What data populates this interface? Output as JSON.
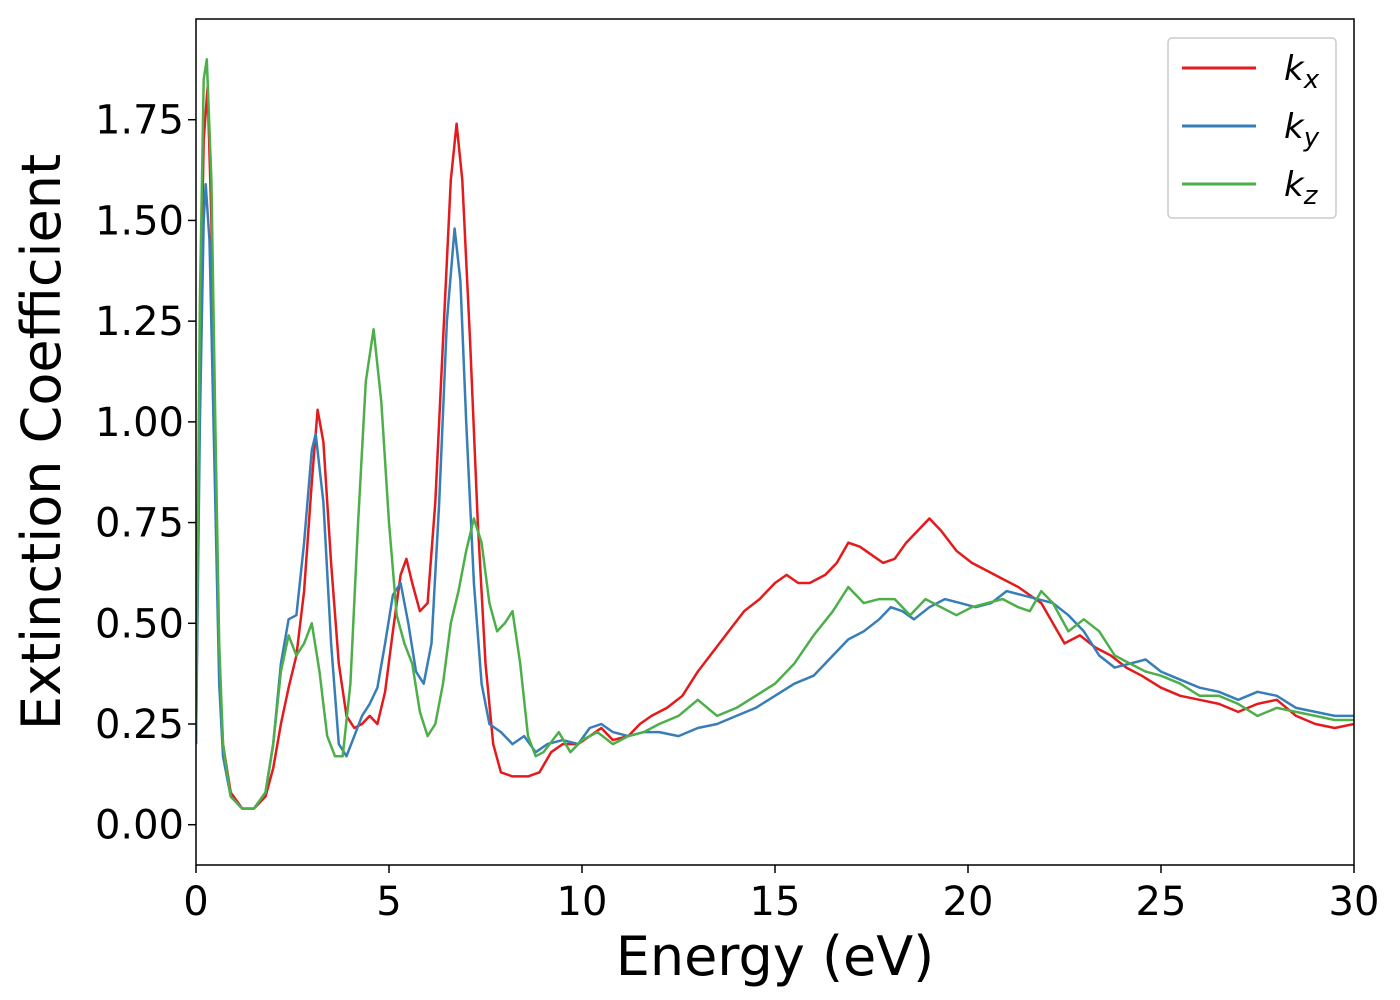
{
  "chart_data": {
    "type": "line",
    "xlabel": "Energy (eV)",
    "ylabel": "Extinction Coefficient",
    "xlim": [
      0,
      30
    ],
    "ylim": [
      -0.1,
      2.0
    ],
    "xticks": [
      "0",
      "5",
      "10",
      "15",
      "20",
      "25",
      "30"
    ],
    "yticks": [
      "0.00",
      "0.25",
      "0.50",
      "0.75",
      "1.00",
      "1.25",
      "1.50",
      "1.75"
    ],
    "grid": false,
    "legend_position": "top-right",
    "series": [
      {
        "name": "k",
        "subscript": "x",
        "color": "#e41a1c",
        "points": [
          [
            0,
            0.2
          ],
          [
            0.1,
            1.2
          ],
          [
            0.2,
            1.7
          ],
          [
            0.3,
            1.83
          ],
          [
            0.4,
            1.5
          ],
          [
            0.5,
            0.9
          ],
          [
            0.6,
            0.4
          ],
          [
            0.7,
            0.2
          ],
          [
            0.9,
            0.08
          ],
          [
            1.2,
            0.04
          ],
          [
            1.5,
            0.04
          ],
          [
            1.8,
            0.07
          ],
          [
            2.0,
            0.14
          ],
          [
            2.2,
            0.25
          ],
          [
            2.4,
            0.34
          ],
          [
            2.6,
            0.42
          ],
          [
            2.8,
            0.58
          ],
          [
            3.0,
            0.85
          ],
          [
            3.15,
            1.03
          ],
          [
            3.3,
            0.95
          ],
          [
            3.5,
            0.65
          ],
          [
            3.7,
            0.4
          ],
          [
            3.9,
            0.27
          ],
          [
            4.1,
            0.24
          ],
          [
            4.3,
            0.25
          ],
          [
            4.5,
            0.27
          ],
          [
            4.7,
            0.25
          ],
          [
            4.9,
            0.33
          ],
          [
            5.1,
            0.48
          ],
          [
            5.3,
            0.62
          ],
          [
            5.45,
            0.66
          ],
          [
            5.6,
            0.6
          ],
          [
            5.8,
            0.53
          ],
          [
            6.0,
            0.55
          ],
          [
            6.2,
            0.8
          ],
          [
            6.4,
            1.2
          ],
          [
            6.6,
            1.6
          ],
          [
            6.75,
            1.74
          ],
          [
            6.9,
            1.6
          ],
          [
            7.1,
            1.2
          ],
          [
            7.3,
            0.75
          ],
          [
            7.5,
            0.4
          ],
          [
            7.7,
            0.2
          ],
          [
            7.9,
            0.13
          ],
          [
            8.2,
            0.12
          ],
          [
            8.6,
            0.12
          ],
          [
            8.9,
            0.13
          ],
          [
            9.2,
            0.18
          ],
          [
            9.5,
            0.2
          ],
          [
            9.9,
            0.2
          ],
          [
            10.2,
            0.22
          ],
          [
            10.5,
            0.24
          ],
          [
            10.8,
            0.21
          ],
          [
            11.2,
            0.22
          ],
          [
            11.5,
            0.25
          ],
          [
            11.8,
            0.27
          ],
          [
            12.2,
            0.29
          ],
          [
            12.6,
            0.32
          ],
          [
            13.0,
            0.38
          ],
          [
            13.4,
            0.43
          ],
          [
            13.8,
            0.48
          ],
          [
            14.2,
            0.53
          ],
          [
            14.6,
            0.56
          ],
          [
            15.0,
            0.6
          ],
          [
            15.3,
            0.62
          ],
          [
            15.6,
            0.6
          ],
          [
            15.9,
            0.6
          ],
          [
            16.3,
            0.62
          ],
          [
            16.6,
            0.65
          ],
          [
            16.9,
            0.7
          ],
          [
            17.2,
            0.69
          ],
          [
            17.5,
            0.67
          ],
          [
            17.8,
            0.65
          ],
          [
            18.1,
            0.66
          ],
          [
            18.4,
            0.7
          ],
          [
            18.7,
            0.73
          ],
          [
            19.0,
            0.76
          ],
          [
            19.3,
            0.73
          ],
          [
            19.7,
            0.68
          ],
          [
            20.1,
            0.65
          ],
          [
            20.5,
            0.63
          ],
          [
            20.9,
            0.61
          ],
          [
            21.3,
            0.59
          ],
          [
            21.6,
            0.57
          ],
          [
            21.9,
            0.55
          ],
          [
            22.2,
            0.5
          ],
          [
            22.5,
            0.45
          ],
          [
            22.9,
            0.47
          ],
          [
            23.3,
            0.44
          ],
          [
            23.7,
            0.42
          ],
          [
            24.1,
            0.39
          ],
          [
            24.5,
            0.37
          ],
          [
            25.0,
            0.34
          ],
          [
            25.5,
            0.32
          ],
          [
            26.0,
            0.31
          ],
          [
            26.5,
            0.3
          ],
          [
            27.0,
            0.28
          ],
          [
            27.5,
            0.3
          ],
          [
            28.0,
            0.31
          ],
          [
            28.5,
            0.27
          ],
          [
            29.0,
            0.25
          ],
          [
            29.5,
            0.24
          ],
          [
            30.0,
            0.25
          ]
        ]
      },
      {
        "name": "k",
        "subscript": "y",
        "color": "#377eb8",
        "points": [
          [
            0,
            0.2
          ],
          [
            0.1,
            1.0
          ],
          [
            0.2,
            1.5
          ],
          [
            0.25,
            1.59
          ],
          [
            0.35,
            1.45
          ],
          [
            0.5,
            0.8
          ],
          [
            0.6,
            0.35
          ],
          [
            0.7,
            0.17
          ],
          [
            0.9,
            0.07
          ],
          [
            1.2,
            0.04
          ],
          [
            1.5,
            0.04
          ],
          [
            1.8,
            0.08
          ],
          [
            2.0,
            0.2
          ],
          [
            2.2,
            0.4
          ],
          [
            2.4,
            0.51
          ],
          [
            2.6,
            0.52
          ],
          [
            2.8,
            0.7
          ],
          [
            3.0,
            0.93
          ],
          [
            3.1,
            0.97
          ],
          [
            3.3,
            0.8
          ],
          [
            3.5,
            0.45
          ],
          [
            3.7,
            0.2
          ],
          [
            3.9,
            0.17
          ],
          [
            4.1,
            0.22
          ],
          [
            4.3,
            0.27
          ],
          [
            4.5,
            0.3
          ],
          [
            4.7,
            0.34
          ],
          [
            4.9,
            0.45
          ],
          [
            5.1,
            0.57
          ],
          [
            5.3,
            0.6
          ],
          [
            5.5,
            0.5
          ],
          [
            5.7,
            0.38
          ],
          [
            5.9,
            0.35
          ],
          [
            6.1,
            0.45
          ],
          [
            6.3,
            0.8
          ],
          [
            6.5,
            1.25
          ],
          [
            6.7,
            1.48
          ],
          [
            6.85,
            1.35
          ],
          [
            7.0,
            1.0
          ],
          [
            7.2,
            0.6
          ],
          [
            7.4,
            0.35
          ],
          [
            7.6,
            0.25
          ],
          [
            7.9,
            0.23
          ],
          [
            8.2,
            0.2
          ],
          [
            8.5,
            0.22
          ],
          [
            8.8,
            0.18
          ],
          [
            9.1,
            0.2
          ],
          [
            9.5,
            0.21
          ],
          [
            9.9,
            0.2
          ],
          [
            10.2,
            0.24
          ],
          [
            10.5,
            0.25
          ],
          [
            10.8,
            0.23
          ],
          [
            11.2,
            0.22
          ],
          [
            11.6,
            0.23
          ],
          [
            12.0,
            0.23
          ],
          [
            12.5,
            0.22
          ],
          [
            13.0,
            0.24
          ],
          [
            13.5,
            0.25
          ],
          [
            14.0,
            0.27
          ],
          [
            14.5,
            0.29
          ],
          [
            15.0,
            0.32
          ],
          [
            15.5,
            0.35
          ],
          [
            16.0,
            0.37
          ],
          [
            16.5,
            0.42
          ],
          [
            16.9,
            0.46
          ],
          [
            17.3,
            0.48
          ],
          [
            17.7,
            0.51
          ],
          [
            18.0,
            0.54
          ],
          [
            18.3,
            0.53
          ],
          [
            18.6,
            0.51
          ],
          [
            19.0,
            0.54
          ],
          [
            19.4,
            0.56
          ],
          [
            19.8,
            0.55
          ],
          [
            20.2,
            0.54
          ],
          [
            20.6,
            0.55
          ],
          [
            21.0,
            0.58
          ],
          [
            21.4,
            0.57
          ],
          [
            21.8,
            0.56
          ],
          [
            22.2,
            0.55
          ],
          [
            22.6,
            0.52
          ],
          [
            23.0,
            0.48
          ],
          [
            23.4,
            0.42
          ],
          [
            23.8,
            0.39
          ],
          [
            24.2,
            0.4
          ],
          [
            24.6,
            0.41
          ],
          [
            25.0,
            0.38
          ],
          [
            25.5,
            0.36
          ],
          [
            26.0,
            0.34
          ],
          [
            26.5,
            0.33
          ],
          [
            27.0,
            0.31
          ],
          [
            27.5,
            0.33
          ],
          [
            28.0,
            0.32
          ],
          [
            28.5,
            0.29
          ],
          [
            29.0,
            0.28
          ],
          [
            29.5,
            0.27
          ],
          [
            30.0,
            0.27
          ]
        ]
      },
      {
        "name": "k",
        "subscript": "z",
        "color": "#4daf4a",
        "points": [
          [
            0,
            0.25
          ],
          [
            0.1,
            1.3
          ],
          [
            0.2,
            1.85
          ],
          [
            0.28,
            1.9
          ],
          [
            0.4,
            1.6
          ],
          [
            0.5,
            1.0
          ],
          [
            0.6,
            0.45
          ],
          [
            0.7,
            0.2
          ],
          [
            0.9,
            0.07
          ],
          [
            1.2,
            0.04
          ],
          [
            1.5,
            0.04
          ],
          [
            1.8,
            0.08
          ],
          [
            2.0,
            0.2
          ],
          [
            2.2,
            0.38
          ],
          [
            2.4,
            0.47
          ],
          [
            2.6,
            0.42
          ],
          [
            2.8,
            0.45
          ],
          [
            3.0,
            0.5
          ],
          [
            3.2,
            0.38
          ],
          [
            3.4,
            0.22
          ],
          [
            3.6,
            0.17
          ],
          [
            3.8,
            0.17
          ],
          [
            4.0,
            0.35
          ],
          [
            4.2,
            0.75
          ],
          [
            4.4,
            1.1
          ],
          [
            4.6,
            1.23
          ],
          [
            4.8,
            1.05
          ],
          [
            5.0,
            0.75
          ],
          [
            5.2,
            0.52
          ],
          [
            5.4,
            0.45
          ],
          [
            5.6,
            0.4
          ],
          [
            5.8,
            0.28
          ],
          [
            6.0,
            0.22
          ],
          [
            6.2,
            0.25
          ],
          [
            6.4,
            0.35
          ],
          [
            6.6,
            0.5
          ],
          [
            6.8,
            0.58
          ],
          [
            7.0,
            0.68
          ],
          [
            7.2,
            0.76
          ],
          [
            7.4,
            0.7
          ],
          [
            7.6,
            0.55
          ],
          [
            7.8,
            0.48
          ],
          [
            8.0,
            0.5
          ],
          [
            8.2,
            0.53
          ],
          [
            8.4,
            0.4
          ],
          [
            8.6,
            0.22
          ],
          [
            8.8,
            0.17
          ],
          [
            9.0,
            0.18
          ],
          [
            9.4,
            0.23
          ],
          [
            9.7,
            0.18
          ],
          [
            10.0,
            0.21
          ],
          [
            10.4,
            0.23
          ],
          [
            10.8,
            0.2
          ],
          [
            11.2,
            0.22
          ],
          [
            11.6,
            0.23
          ],
          [
            12.0,
            0.25
          ],
          [
            12.5,
            0.27
          ],
          [
            13.0,
            0.31
          ],
          [
            13.5,
            0.27
          ],
          [
            14.0,
            0.29
          ],
          [
            14.5,
            0.32
          ],
          [
            15.0,
            0.35
          ],
          [
            15.5,
            0.4
          ],
          [
            16.0,
            0.47
          ],
          [
            16.5,
            0.53
          ],
          [
            16.9,
            0.59
          ],
          [
            17.3,
            0.55
          ],
          [
            17.7,
            0.56
          ],
          [
            18.1,
            0.56
          ],
          [
            18.5,
            0.52
          ],
          [
            18.9,
            0.56
          ],
          [
            19.3,
            0.54
          ],
          [
            19.7,
            0.52
          ],
          [
            20.1,
            0.54
          ],
          [
            20.5,
            0.55
          ],
          [
            20.9,
            0.56
          ],
          [
            21.3,
            0.54
          ],
          [
            21.6,
            0.53
          ],
          [
            21.9,
            0.58
          ],
          [
            22.2,
            0.55
          ],
          [
            22.6,
            0.48
          ],
          [
            23.0,
            0.51
          ],
          [
            23.4,
            0.48
          ],
          [
            23.8,
            0.42
          ],
          [
            24.2,
            0.4
          ],
          [
            24.6,
            0.38
          ],
          [
            25.0,
            0.37
          ],
          [
            25.5,
            0.35
          ],
          [
            26.0,
            0.32
          ],
          [
            26.5,
            0.32
          ],
          [
            27.0,
            0.3
          ],
          [
            27.5,
            0.27
          ],
          [
            28.0,
            0.29
          ],
          [
            28.5,
            0.28
          ],
          [
            29.0,
            0.27
          ],
          [
            29.5,
            0.26
          ],
          [
            30.0,
            0.26
          ]
        ]
      }
    ]
  }
}
